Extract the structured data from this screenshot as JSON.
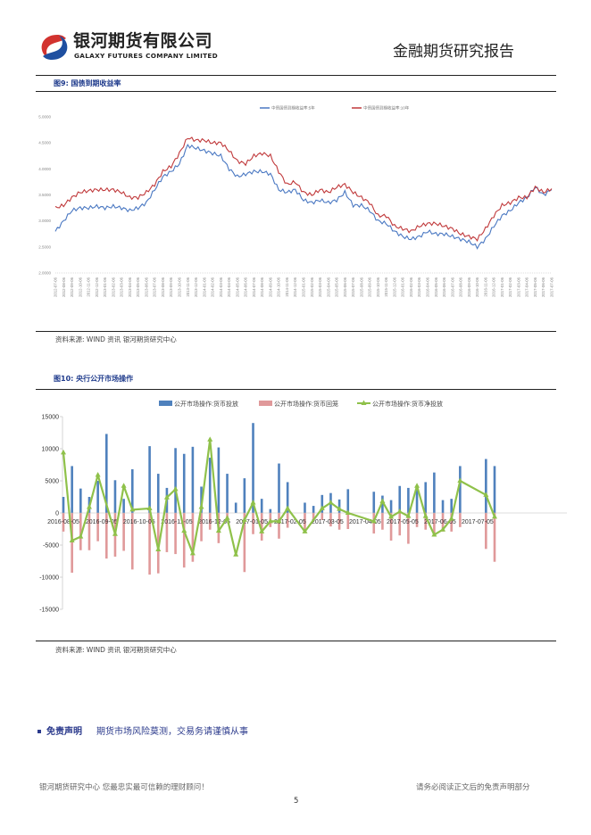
{
  "header": {
    "company_cn": "银河期货有限公司",
    "company_en": "GALAXY FUTURES COMPANY LIMITED",
    "report_title": "金融期货研究报告"
  },
  "figure9": {
    "title": "图9: 国债到期收益率",
    "source": "资料来源: WIND 资讯    银河期货研究中心"
  },
  "figure10": {
    "title": "图10:  央行公开市场操作",
    "source": "资料来源: WIND 资讯    银河期货研究中心"
  },
  "chart_data": [
    {
      "type": "line",
      "title": "国债到期收益率",
      "ylim": [
        2.0,
        5.0
      ],
      "yticks": [
        "2.0000",
        "2.5000",
        "3.0000",
        "3.5000",
        "4.0000",
        "4.5000",
        "5.0000"
      ],
      "ytick_values": [
        2.0,
        2.5,
        3.0,
        3.5,
        4.0,
        4.5,
        5.0
      ],
      "legend_position": "top-center",
      "x": [
        "2012-07-06",
        "2012-08-06",
        "2012-09-06",
        "2012-10-06",
        "2012-11-06",
        "2012-12-06",
        "2013-01-06",
        "2013-02-06",
        "2013-03-06",
        "2013-04-06",
        "2013-05-06",
        "2013-06-06",
        "2013-07-06",
        "2013-08-06",
        "2013-09-06",
        "2013-10-06",
        "2013-11-06",
        "2013-12-06",
        "2014-01-06",
        "2014-02-06",
        "2014-03-06",
        "2014-04-06",
        "2014-05-06",
        "2014-06-06",
        "2014-07-06",
        "2014-08-06",
        "2014-09-06",
        "2014-10-06",
        "2014-11-06",
        "2014-12-06",
        "2015-01-06",
        "2015-02-06",
        "2015-03-06",
        "2015-04-06",
        "2015-05-06",
        "2015-06-06",
        "2015-07-06",
        "2015-08-06",
        "2015-09-06",
        "2015-10-06",
        "2015-11-06",
        "2015-12-06",
        "2016-01-06",
        "2016-02-06",
        "2016-03-06",
        "2016-04-06",
        "2016-05-06",
        "2016-06-06",
        "2016-07-06",
        "2016-08-06",
        "2016-09-06",
        "2016-10-06",
        "2016-11-06",
        "2016-12-06",
        "2017-01-06",
        "2017-02-06",
        "2017-03-06",
        "2017-04-06",
        "2017-05-06",
        "2017-06-06",
        "2017-07-06"
      ],
      "series": [
        {
          "name": "中债国债到期收益率:5年",
          "color": "#4a78c2",
          "values": [
            2.8,
            3.0,
            3.2,
            3.25,
            3.25,
            3.28,
            3.25,
            3.28,
            3.25,
            3.2,
            3.25,
            3.35,
            3.6,
            3.85,
            3.95,
            4.1,
            4.45,
            4.4,
            4.35,
            4.3,
            4.25,
            4.0,
            3.85,
            3.9,
            3.95,
            3.95,
            3.9,
            3.6,
            3.55,
            3.6,
            3.4,
            3.35,
            3.4,
            3.35,
            3.4,
            3.55,
            3.3,
            3.3,
            3.2,
            3.0,
            2.95,
            2.8,
            2.7,
            2.65,
            2.7,
            2.8,
            2.75,
            2.75,
            2.7,
            2.65,
            2.6,
            2.5,
            2.65,
            2.9,
            3.1,
            3.2,
            3.35,
            3.45,
            3.65,
            3.5,
            3.6
          ]
        },
        {
          "name": "中债国债到期收益率:10年",
          "color": "#c0393b",
          "values": [
            3.25,
            3.3,
            3.45,
            3.55,
            3.58,
            3.6,
            3.6,
            3.6,
            3.55,
            3.45,
            3.45,
            3.55,
            3.7,
            3.95,
            4.05,
            4.3,
            4.6,
            4.55,
            4.55,
            4.5,
            4.5,
            4.35,
            4.15,
            4.1,
            4.25,
            4.3,
            4.25,
            3.95,
            3.7,
            3.75,
            3.55,
            3.5,
            3.6,
            3.55,
            3.65,
            3.7,
            3.55,
            3.45,
            3.35,
            3.1,
            3.1,
            2.9,
            2.85,
            2.8,
            2.9,
            2.95,
            2.95,
            2.9,
            2.85,
            2.75,
            2.7,
            2.65,
            2.85,
            3.1,
            3.3,
            3.35,
            3.45,
            3.45,
            3.65,
            3.55,
            3.62
          ]
        }
      ]
    },
    {
      "type": "bar",
      "title": "央行公开市场操作",
      "ylim": [
        -15000,
        15000
      ],
      "yticks": [
        "-15000",
        "-10000",
        "-5000",
        "0",
        "5000",
        "10000",
        "15000"
      ],
      "ytick_values": [
        -15000,
        -10000,
        -5000,
        0,
        5000,
        10000,
        15000
      ],
      "legend_position": "top-center",
      "x_tick_labels": [
        "2016-08-05",
        "2016-09-05",
        "2016-10-05",
        "2016-11-05",
        "2016-12-05",
        "2017-01-05",
        "2017-02-05",
        "2017-03-05",
        "2017-04-05",
        "2017-05-05",
        "2017-06-05",
        "2017-07-05"
      ],
      "categories": [
        "2016-08-05",
        "2016-08-12",
        "2016-08-19",
        "2016-08-26",
        "2016-09-02",
        "2016-09-09",
        "2016-09-16",
        "2016-09-23",
        "2016-09-30",
        "2016-10-07",
        "2016-10-14",
        "2016-10-21",
        "2016-10-28",
        "2016-11-04",
        "2016-11-11",
        "2016-11-18",
        "2016-11-25",
        "2016-12-02",
        "2016-12-09",
        "2016-12-16",
        "2016-12-23",
        "2016-12-30",
        "2017-01-06",
        "2017-01-13",
        "2017-01-20",
        "2017-01-27",
        "2017-02-03",
        "2017-02-10",
        "2017-02-17",
        "2017-02-24",
        "2017-03-03",
        "2017-03-10",
        "2017-03-17",
        "2017-03-24",
        "2017-03-31",
        "2017-04-07",
        "2017-04-14",
        "2017-04-21",
        "2017-04-28",
        "2017-05-05",
        "2017-05-12",
        "2017-05-19",
        "2017-05-26",
        "2017-06-02",
        "2017-06-09",
        "2017-06-16",
        "2017-06-23",
        "2017-06-30",
        "2017-07-07",
        "2017-07-14",
        "2017-07-21"
      ],
      "series": [
        {
          "name": "公开市场操作:货币投放",
          "kind": "bar",
          "color": "#4f81bd",
          "values": [
            2500,
            7300,
            3800,
            2500,
            5000,
            12300,
            5100,
            2200,
            6800,
            0,
            10400,
            6100,
            3900,
            10100,
            9200,
            10300,
            4100,
            8600,
            10200,
            6100,
            1600,
            5400,
            14000,
            2200,
            600,
            7700,
            4800,
            0,
            1600,
            1100,
            2800,
            3100,
            2100,
            3700,
            0,
            0,
            3300,
            2700,
            2000,
            4200,
            3900,
            3600,
            4800,
            6300,
            2000,
            2200,
            7300,
            0,
            0,
            8400,
            7300
          ]
        },
        {
          "name": "公开市场操作:货币回笼",
          "kind": "bar",
          "color": "#e0999a",
          "values": [
            -2900,
            -9300,
            -5800,
            -5800,
            -4400,
            -7100,
            -6800,
            -5900,
            -8800,
            0,
            -9600,
            -9400,
            -6100,
            -6400,
            -8500,
            -7600,
            -4400,
            -2600,
            -4700,
            -700,
            0,
            -9200,
            -3300,
            -4300,
            -2200,
            -4000,
            -2300,
            0,
            -2900,
            -1100,
            -1100,
            -2100,
            -2600,
            -2500,
            0,
            0,
            -3200,
            -2600,
            -4300,
            -3500,
            -4800,
            -2200,
            -2600,
            -3300,
            -2900,
            -2900,
            -2200,
            0,
            0,
            -5600,
            -7600
          ]
        },
        {
          "name": "公开市场操作:货币净投放",
          "kind": "line",
          "color": "#8fc14a",
          "values": [
            9400,
            -4300,
            -3700,
            900,
            5900,
            null,
            -3300,
            4200,
            500,
            null,
            700,
            -5700,
            2400,
            3700,
            -2800,
            -6300,
            900,
            11400,
            -2800,
            -800,
            -6500,
            -1100,
            1600,
            -2900,
            -1300,
            -1300,
            700,
            null,
            -2900,
            null,
            700,
            1600,
            600,
            0,
            null,
            null,
            -1300,
            1800,
            -600,
            200,
            -500,
            4200,
            -500,
            -3400,
            -2600,
            -900,
            5000,
            null,
            null,
            2800,
            -600
          ]
        }
      ]
    }
  ],
  "disclaimer": {
    "label": "免责声明",
    "text": "期货市场风险莫测，交易务请谨慎从事"
  },
  "footer": {
    "left": "银河期货研究中心  您最忠实最可信赖的理财顾问！",
    "right": "请务必阅读正文后的免责声明部分",
    "page_number": "5"
  }
}
